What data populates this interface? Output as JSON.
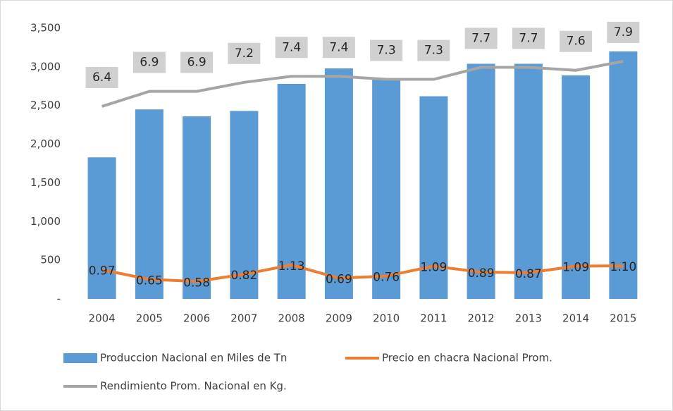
{
  "chart_data": {
    "type": "bar_line",
    "categories": [
      "2004",
      "2005",
      "2006",
      "2007",
      "2008",
      "2009",
      "2010",
      "2011",
      "2012",
      "2013",
      "2014",
      "2015"
    ],
    "ylim": [
      0,
      3500
    ],
    "yticks": [
      {
        "value": 0,
        "label": "-"
      },
      500,
      {
        "value": 1000,
        "label": "1,000"
      },
      {
        "value": 1500,
        "label": "1,500"
      },
      {
        "value": 2000,
        "label": "2,000"
      },
      {
        "value": 2500,
        "label": "2,500"
      },
      {
        "value": 3000,
        "label": "3,000"
      },
      {
        "value": 3500,
        "label": "3,500"
      }
    ],
    "y2lim": [
      0,
      9
    ],
    "series": [
      {
        "name": "Produccion Nacional en Miles de Tn",
        "type": "bar",
        "color": "#5b9bd5",
        "values": [
          1830,
          2450,
          2360,
          2430,
          2780,
          2980,
          2840,
          2620,
          3040,
          3040,
          2890,
          3200
        ]
      },
      {
        "name": "Precio en chacra Nacional Prom.",
        "type": "line",
        "axis": "y2",
        "color": "#ed7d31",
        "values": [
          0.97,
          0.65,
          0.58,
          0.82,
          1.13,
          0.69,
          0.76,
          1.09,
          0.89,
          0.87,
          1.09,
          1.1
        ],
        "value_labels": [
          "0.97",
          "0.65",
          "0.58",
          "0.82",
          "1.13",
          "0.69",
          "0.76",
          "1.09",
          "0.89",
          "0.87",
          "1.09",
          "1.10"
        ]
      },
      {
        "name": "Rendimiento Prom. Nacional en Kg.",
        "type": "line",
        "axis": "y2",
        "color": "#a5a5a5",
        "values": [
          6.4,
          6.9,
          6.9,
          7.2,
          7.4,
          7.4,
          7.3,
          7.3,
          7.7,
          7.7,
          7.6,
          7.9
        ]
      }
    ]
  }
}
